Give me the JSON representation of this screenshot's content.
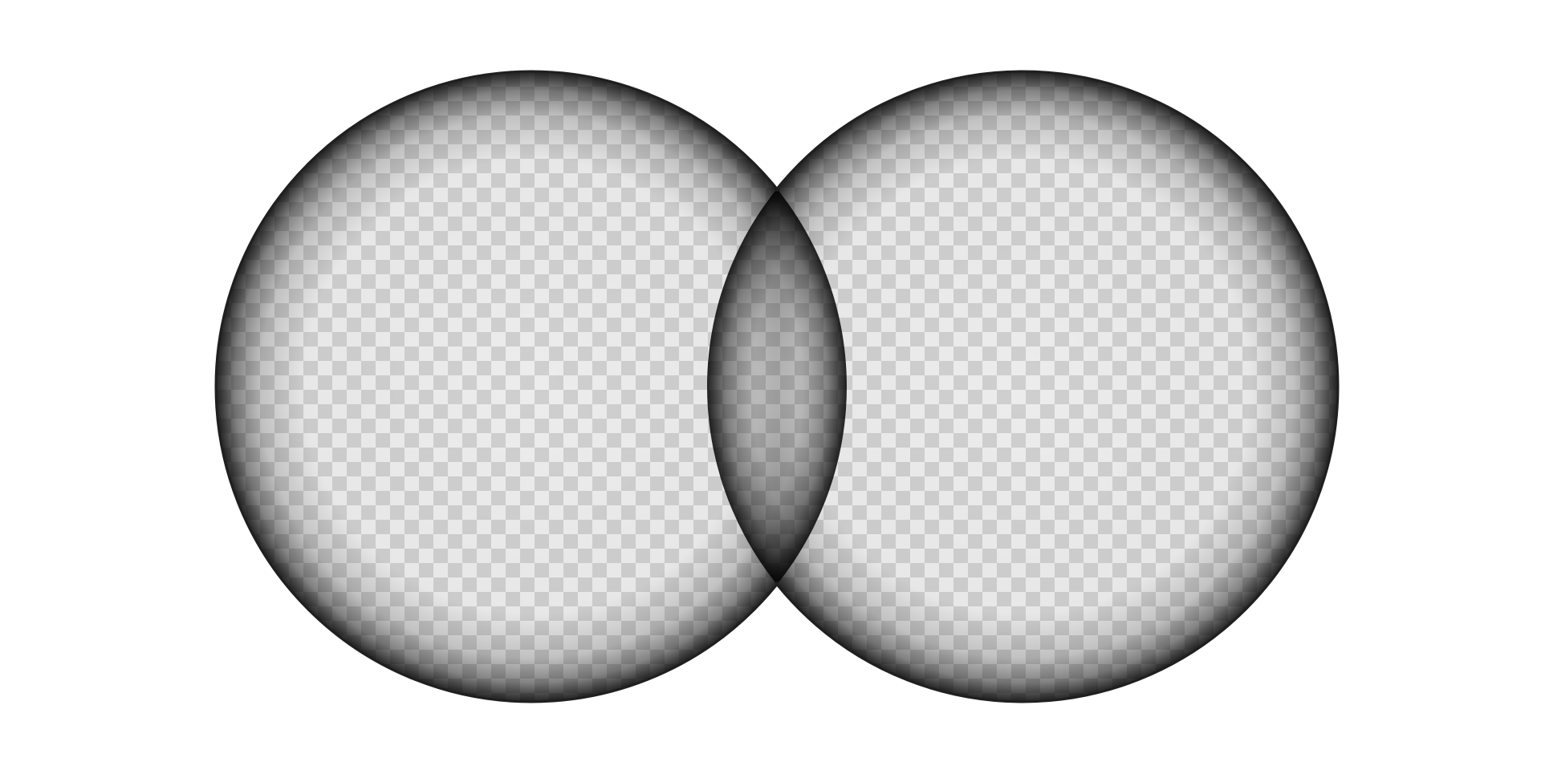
{
  "graphic": {
    "description_name": "binocular-viewport-mask",
    "background_color": "#ffffff",
    "checker_light": "#ececec",
    "checker_dark": "#cfcfcf",
    "vignette_color": "#000000",
    "rim_color": "#1f1f1f"
  }
}
